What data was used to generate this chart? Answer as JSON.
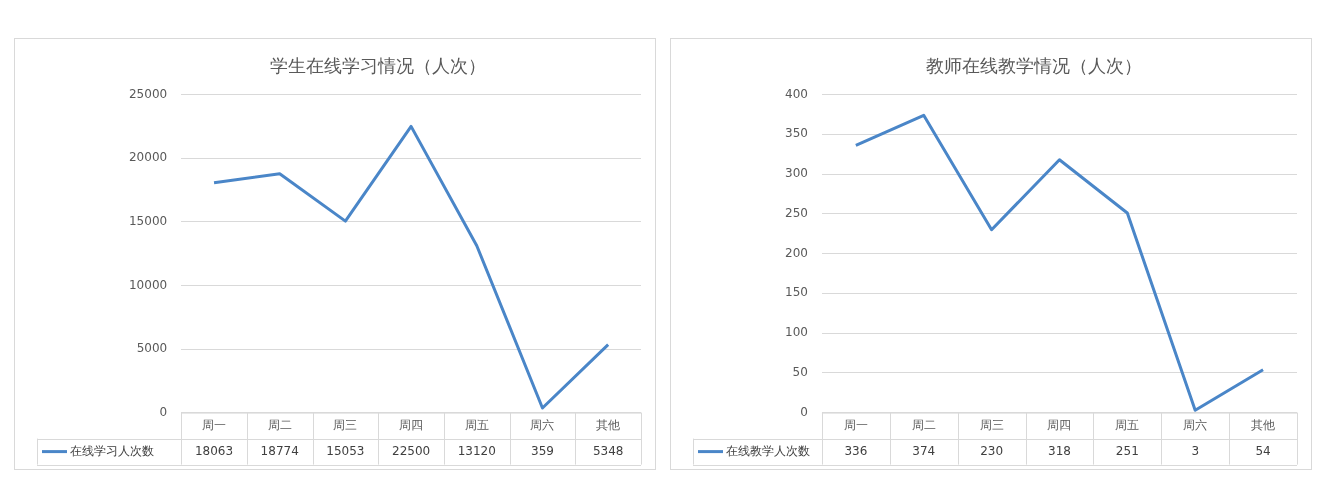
{
  "chart_data": [
    {
      "type": "line",
      "title": "学生在线学习情况（人次）",
      "categories": [
        "周一",
        "周二",
        "周三",
        "周四",
        "周五",
        "周六",
        "其他"
      ],
      "series": [
        {
          "name": "在线学习人次数",
          "color": "#4a86c8",
          "values": [
            18063,
            18774,
            15053,
            22500,
            13120,
            359,
            5348
          ]
        }
      ],
      "ylim": [
        0,
        25000
      ],
      "yticks": [
        0,
        5000,
        10000,
        15000,
        20000,
        25000
      ],
      "grid": "y",
      "legend": "bottom",
      "marker": "none",
      "data_labels": true
    },
    {
      "type": "line",
      "title": "教师在线教学情况（人次）",
      "categories": [
        "周一",
        "周二",
        "周三",
        "周四",
        "周五",
        "周六",
        "其他"
      ],
      "series": [
        {
          "name": "在线教学人次数",
          "color": "#4a86c8",
          "values": [
            336,
            374,
            230,
            318,
            251,
            3,
            54
          ]
        }
      ],
      "ylim": [
        0,
        400
      ],
      "yticks": [
        0,
        50,
        100,
        150,
        200,
        250,
        300,
        350,
        400
      ],
      "grid": "y",
      "legend": "bottom",
      "marker": "none",
      "data_labels": true
    }
  ]
}
